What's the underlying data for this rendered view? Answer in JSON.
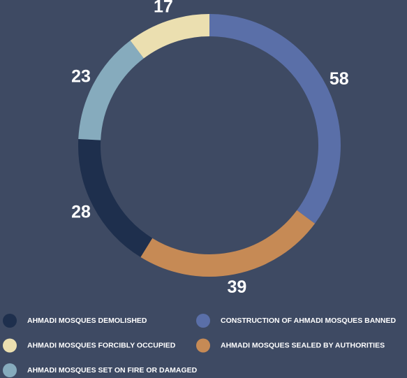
{
  "chart_data": {
    "type": "pie",
    "categories": [
      "CONSTRUCTION OF AHMADI MOSQUES BANNED",
      "AHMADI MOSQUES SEALED BY AUTHORITIES",
      "AHMADI MOSQUES DEMOLISHED",
      "AHMADI MOSQUES SET ON FIRE OR DAMAGED",
      "AHMADI MOSQUES FORCIBLY OCCUPIED"
    ],
    "values": [
      58,
      39,
      28,
      23,
      17
    ],
    "colors": [
      "#5a6fa8",
      "#c68a55",
      "#1e2f4d",
      "#86abbd",
      "#ebdfb0"
    ]
  }
}
